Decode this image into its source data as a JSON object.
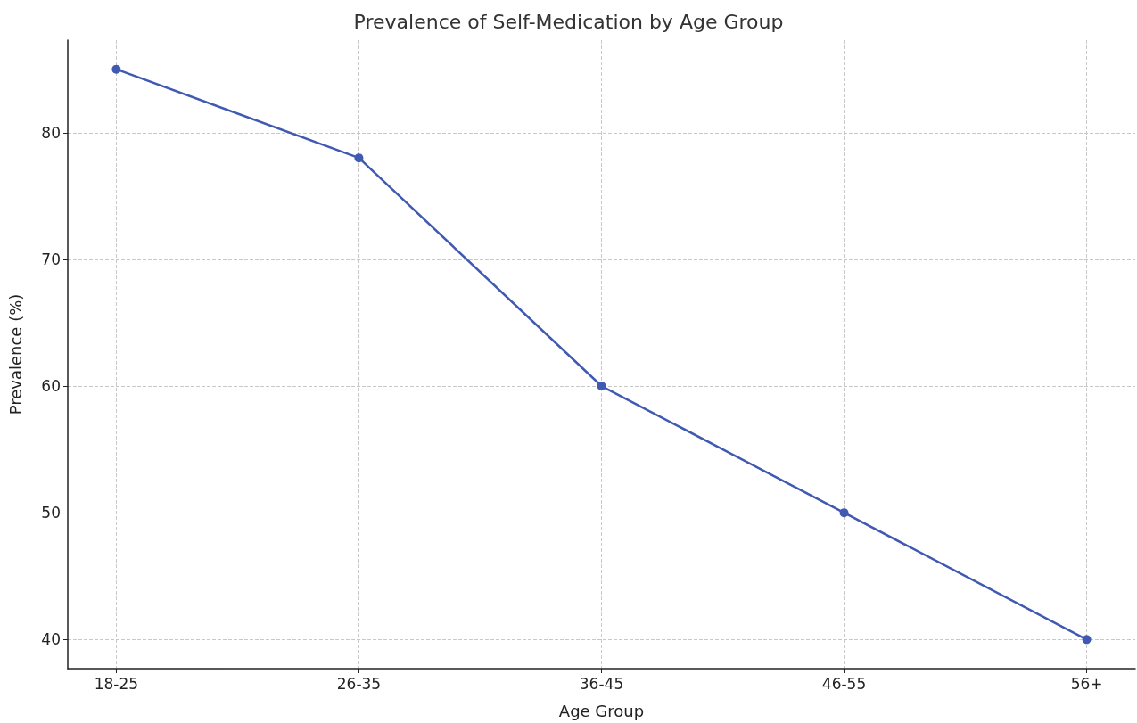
{
  "chart_data": {
    "type": "line",
    "title": "Prevalence of Self-Medication by Age Group",
    "xlabel": "Age Group",
    "ylabel": "Prevalence (%)",
    "categories": [
      "18-25",
      "26-35",
      "36-45",
      "46-55",
      "56+"
    ],
    "series": [
      {
        "color": "#4059b2",
        "values": [
          85,
          78,
          60,
          50,
          40
        ]
      }
    ],
    "ylim": [
      37.7,
      87.3
    ],
    "yticks": [
      40,
      50,
      60,
      70,
      80
    ],
    "grid": true,
    "marker": "circle",
    "line_style": "solid"
  }
}
